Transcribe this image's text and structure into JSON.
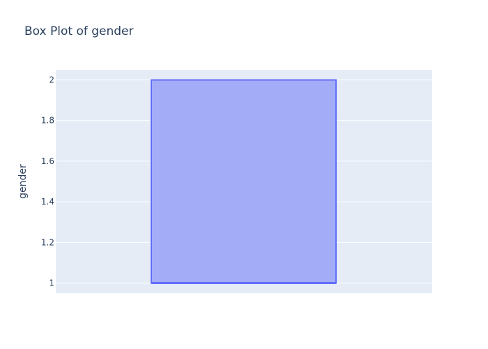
{
  "chart_data": {
    "type": "box",
    "title": "Box Plot of gender",
    "xlabel": "",
    "ylabel": "gender",
    "ylim": [
      0.95,
      2.05
    ],
    "yticks": [
      1,
      1.2,
      1.4,
      1.6,
      1.8,
      2
    ],
    "ytick_labels": [
      "1",
      "1.2",
      "1.4",
      "1.6",
      "1.8",
      "2"
    ],
    "grid": true,
    "series": [
      {
        "min": 1,
        "q1": 1,
        "median": 1,
        "q3": 2,
        "max": 2,
        "fill_color": "#a3acf6",
        "line_color": "#636efa"
      }
    ],
    "colors": {
      "plot_background": "#e5ecf6",
      "gridline": "#ffffff",
      "text": "#2a3f5f"
    }
  }
}
